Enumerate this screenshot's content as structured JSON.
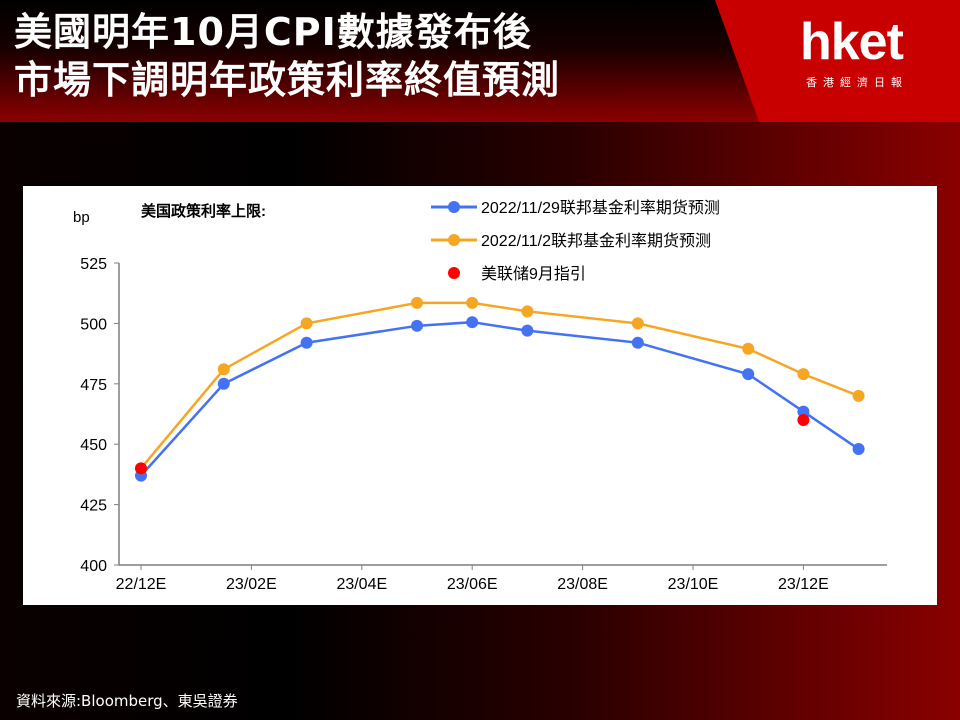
{
  "header": {
    "title_line1": "美國明年10月CPI數據發布後",
    "title_line2": "市場下調明年政策利率終值預測",
    "logo": "hket",
    "logo_sub": "香港經濟日報"
  },
  "footer": {
    "source": "資料來源:Bloomberg、東吳證券"
  },
  "colors": {
    "series_blue": "#4472f4",
    "series_orange": "#f5a623",
    "guidance_red": "#ff0000",
    "brand_red": "#c80000"
  },
  "chart_data": {
    "type": "line",
    "title": "美国政策利率上限:",
    "ylabel": "bp",
    "ylim": [
      400,
      525
    ],
    "yticks": [
      525,
      500,
      475,
      450,
      425,
      400
    ],
    "xlim": [
      0,
      13.2
    ],
    "xticks": [
      {
        "x": 0,
        "label": "22/12E"
      },
      {
        "x": 2,
        "label": "23/02E"
      },
      {
        "x": 4,
        "label": "23/04E"
      },
      {
        "x": 6,
        "label": "23/06E"
      },
      {
        "x": 8,
        "label": "23/08E"
      },
      {
        "x": 10,
        "label": "23/10E"
      },
      {
        "x": 12,
        "label": "23/12E"
      }
    ],
    "legend_position": "top",
    "series": [
      {
        "name": "2022/11/29联邦基金利率期货预测",
        "color": "#4472f4",
        "x": [
          0,
          1.5,
          3,
          5,
          6,
          7,
          9,
          11,
          12,
          13
        ],
        "values": [
          437,
          475,
          492,
          499,
          500.5,
          497,
          492,
          479,
          463.5,
          448
        ]
      },
      {
        "name": "2022/11/2联邦基金利率期货预测",
        "color": "#f5a623",
        "x": [
          0,
          1.5,
          3,
          5,
          6,
          7,
          9,
          11,
          12,
          13
        ],
        "values": [
          440,
          481,
          500,
          508.5,
          508.5,
          505,
          500,
          489.5,
          479,
          470
        ]
      },
      {
        "name": "美联储9月指引",
        "color": "#ff0000",
        "type": "scatter",
        "x": [
          0,
          12
        ],
        "values": [
          440,
          460
        ]
      }
    ]
  }
}
